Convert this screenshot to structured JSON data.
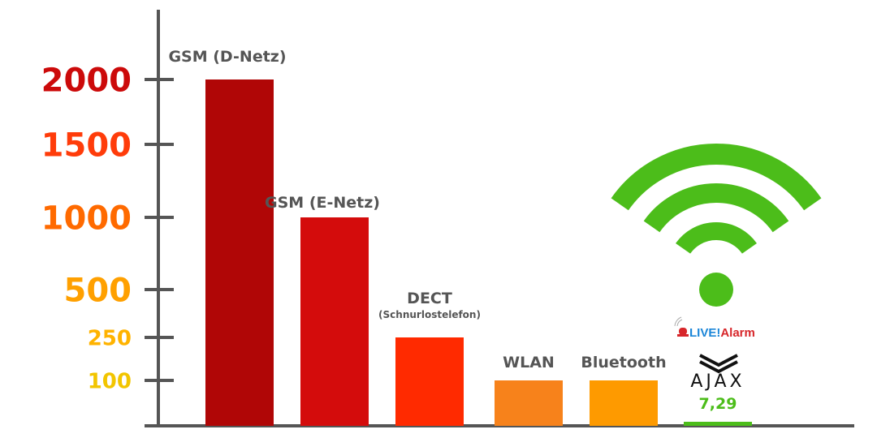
{
  "chart_data": {
    "type": "bar",
    "title": "",
    "xlabel": "",
    "ylabel": "",
    "y_scale": "non-linear (ticks unevenly spaced)",
    "yticks": [
      {
        "value": 2000,
        "label": "2000",
        "color": "#cc0a0a"
      },
      {
        "value": 1500,
        "label": "1500",
        "color": "#ff3c0a"
      },
      {
        "value": 1000,
        "label": "1000",
        "color": "#ff6a00"
      },
      {
        "value": 500,
        "label": "500",
        "color": "#ffa000"
      },
      {
        "value": 250,
        "label": "250",
        "color": "#ffb300"
      },
      {
        "value": 100,
        "label": "100",
        "color": "#f2c500"
      }
    ],
    "categories": [
      "GSM (D-Netz)",
      "GSM (E-Netz)",
      "DECT",
      "WLAN",
      "Bluetooth",
      "AJAX"
    ],
    "sublabels": [
      "",
      "",
      "(Schnurlostelefon)",
      "",
      "",
      ""
    ],
    "values": [
      2000,
      1000,
      250,
      100,
      100,
      7.29
    ],
    "bar_colors": [
      "#b00606",
      "#d40c0c",
      "#ff2a00",
      "#f7821b",
      "#fe9a00",
      "#4cbd1a"
    ],
    "data_labels": [
      "",
      "",
      "",
      "",
      "",
      "7,29"
    ],
    "grid": false
  },
  "logos": {
    "livealarm": "LIVE!Alarm",
    "ajax": "AJAX"
  },
  "icons": {
    "wifi": "wifi-icon",
    "color": "#4cbd1a"
  }
}
